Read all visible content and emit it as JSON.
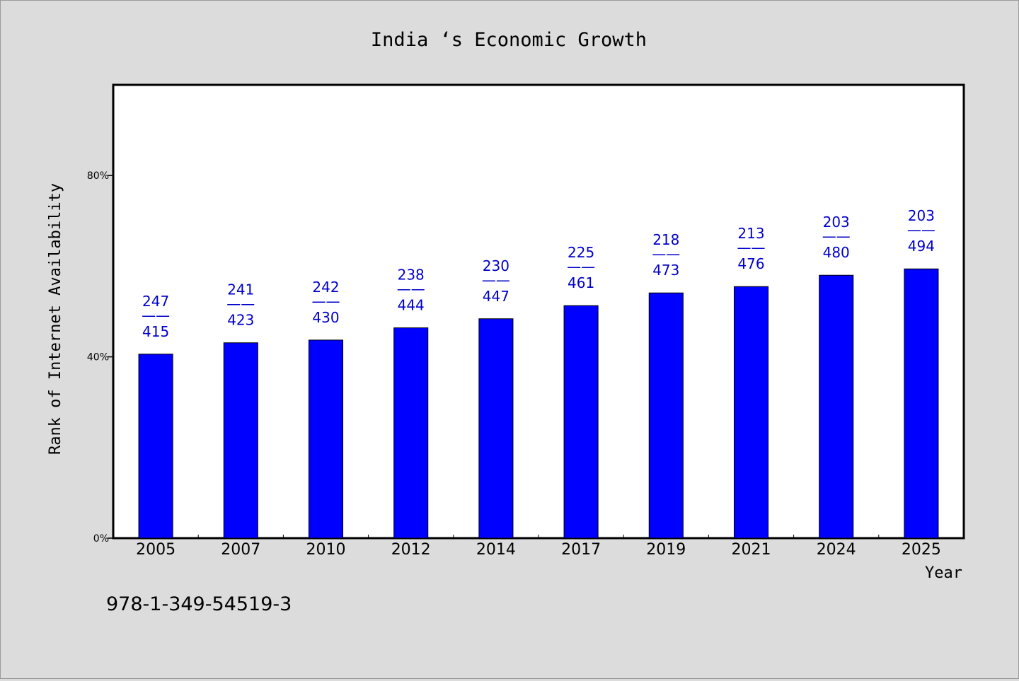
{
  "chart_data": {
    "type": "bar",
    "title": "India ‘s Economic Growth",
    "xlabel": "Year",
    "ylabel": "Rank of Internet Availability",
    "categories": [
      "2005",
      "2007",
      "2010",
      "2012",
      "2014",
      "2017",
      "2019",
      "2021",
      "2024",
      "2025"
    ],
    "values": [
      40.6,
      43.1,
      43.7,
      46.4,
      48.4,
      51.3,
      54.1,
      55.5,
      58.0,
      59.4
    ],
    "bar_labels": [
      {
        "top": "247",
        "bottom": "415"
      },
      {
        "top": "241",
        "bottom": "423"
      },
      {
        "top": "242",
        "bottom": "430"
      },
      {
        "top": "238",
        "bottom": "444"
      },
      {
        "top": "230",
        "bottom": "447"
      },
      {
        "top": "225",
        "bottom": "461"
      },
      {
        "top": "218",
        "bottom": "473"
      },
      {
        "top": "213",
        "bottom": "476"
      },
      {
        "top": "203",
        "bottom": "480"
      },
      {
        "top": "203",
        "bottom": "494"
      }
    ],
    "label_separator": "——",
    "yticks": [
      {
        "value": 0,
        "label": "0%"
      },
      {
        "value": 40,
        "label": "40%"
      },
      {
        "value": 80,
        "label": "80%"
      }
    ],
    "ylim": [
      0,
      100
    ],
    "grid": false,
    "legend": "none",
    "colors": {
      "bar": "#0000ff",
      "label": "#0000cc",
      "plot_bg": "#ffffff",
      "page_bg": "#dcdcdc"
    }
  },
  "footnote": "978-1-349-54519-3"
}
